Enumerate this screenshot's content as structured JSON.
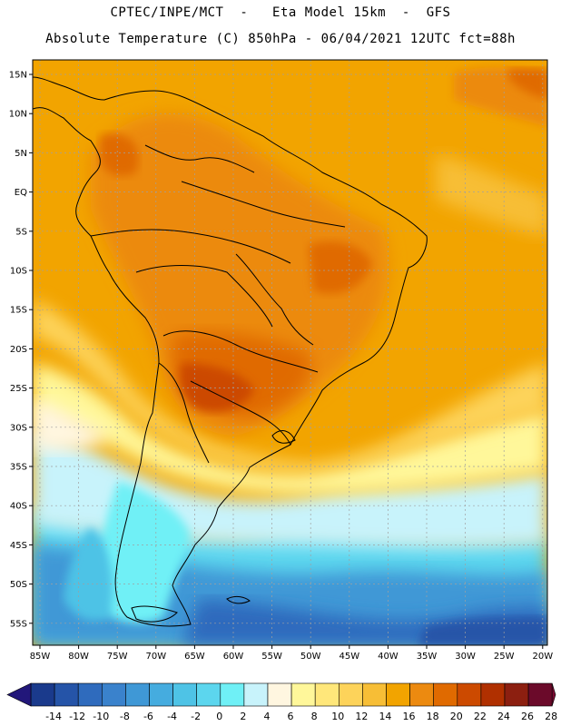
{
  "header": {
    "line1": "CPTEC/INPE/MCT  -   Eta Model 15km  -  GFS",
    "line2": "Absolute Temperature (C) 850hPa - 06/04/2021 12UTC fct=88h"
  },
  "axes": {
    "lat_labels": [
      "15N",
      "10N",
      "5N",
      "EQ",
      "5S",
      "10S",
      "15S",
      "20S",
      "25S",
      "30S",
      "35S",
      "40S",
      "45S",
      "50S",
      "55S"
    ],
    "lon_labels": [
      "85W",
      "80W",
      "75W",
      "70W",
      "65W",
      "60W",
      "55W",
      "50W",
      "45W",
      "40W",
      "35W",
      "30W",
      "25W",
      "20W"
    ]
  },
  "colorbar": {
    "labels": [
      "-14",
      "-12",
      "-10",
      "-8",
      "-6",
      "-4",
      "-2",
      "0",
      "2",
      "4",
      "6",
      "8",
      "10",
      "12",
      "14",
      "16",
      "18",
      "20",
      "22",
      "24",
      "26",
      "28"
    ],
    "colors": [
      "#1a3a8c",
      "#2554a8",
      "#2f6bbd",
      "#3a82cc",
      "#3f98d6",
      "#45acdf",
      "#4ec3e6",
      "#5cd6ee",
      "#6ff0f6",
      "#c8f3fb",
      "#fff6e0",
      "#fff79a",
      "#ffe77a",
      "#fdd35a",
      "#f7be36",
      "#f2a400",
      "#ec8a10",
      "#e06a00",
      "#cc4a00",
      "#b03000",
      "#8c1f10",
      "#6b0a2a"
    ],
    "under_color": "#22177a",
    "over_color": "#7a0a32"
  },
  "palette": {
    "land_line": "#000000",
    "grid": "#a0a0a0"
  }
}
